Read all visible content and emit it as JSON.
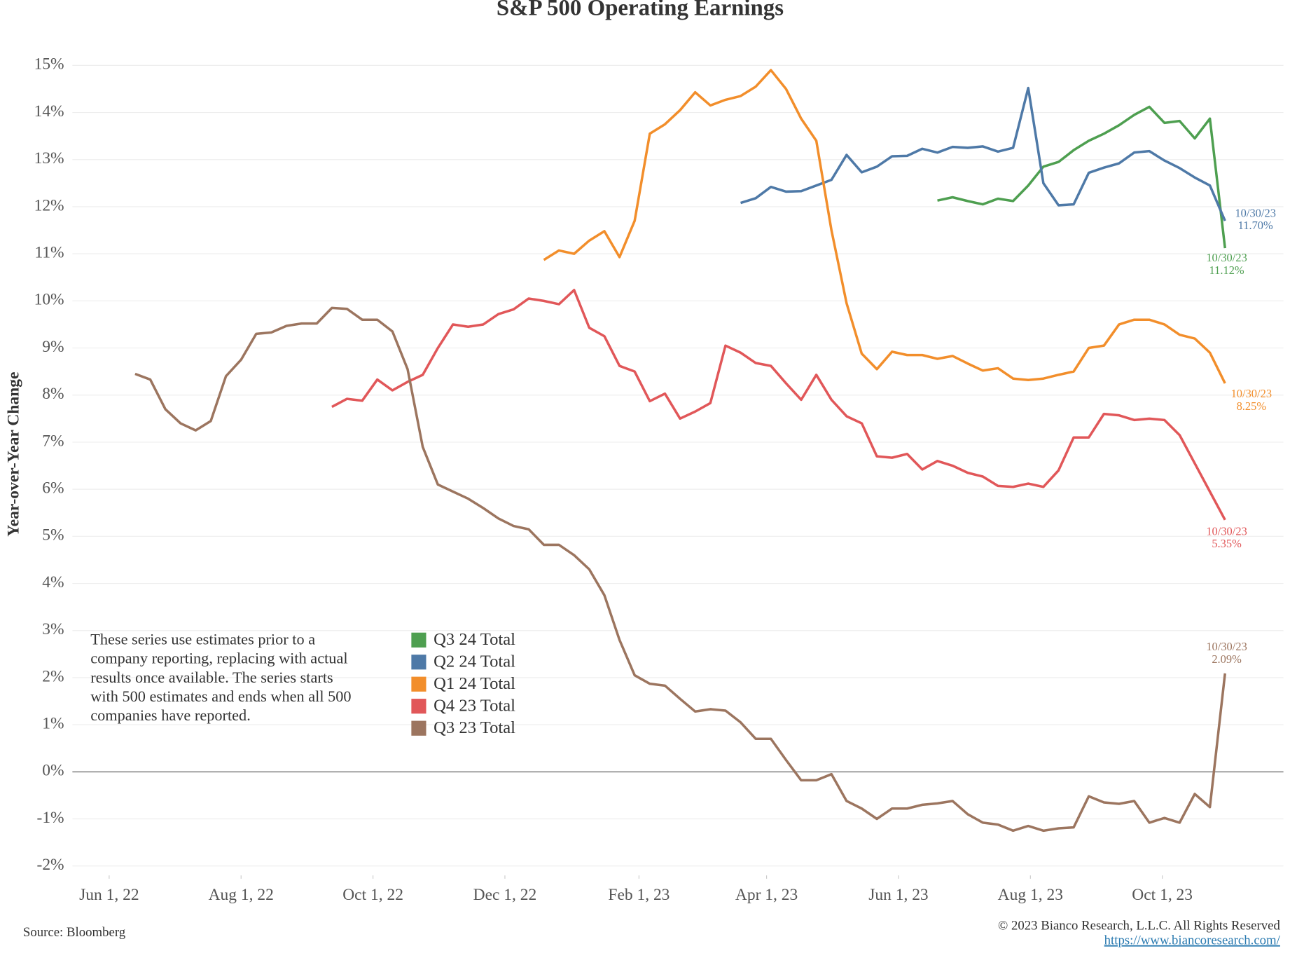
{
  "chart_data": {
    "type": "line",
    "title": "S&P 500 Operating Earnings",
    "y_label": "Year-over-Year Change",
    "source": "Source: Bloomberg",
    "copyright": "© 2023 Bianco Research, L.L.C. All Rights Reserved",
    "url": "https://www.biancoresearch.com/",
    "note": [
      "These series use estimates prior to a",
      "company reporting, replacing with actual",
      "results once available. The series starts",
      "with 500 estimates and ends when all 500",
      "companies have reported."
    ],
    "last_date_label": "10/30/23",
    "grid": true,
    "zero_line": true,
    "x": [
      "2022-06-13",
      "2022-06-20",
      "2022-06-27",
      "2022-07-04",
      "2022-07-11",
      "2022-07-18",
      "2022-07-25",
      "2022-08-01",
      "2022-08-08",
      "2022-08-15",
      "2022-08-22",
      "2022-08-29",
      "2022-09-05",
      "2022-09-12",
      "2022-09-19",
      "2022-09-26",
      "2022-10-03",
      "2022-10-10",
      "2022-10-17",
      "2022-10-24",
      "2022-10-31",
      "2022-11-07",
      "2022-11-14",
      "2022-11-21",
      "2022-11-28",
      "2022-12-05",
      "2022-12-12",
      "2022-12-19",
      "2022-12-26",
      "2023-01-02",
      "2023-01-09",
      "2023-01-16",
      "2023-01-23",
      "2023-01-30",
      "2023-02-06",
      "2023-02-13",
      "2023-02-20",
      "2023-02-27",
      "2023-03-06",
      "2023-03-13",
      "2023-03-20",
      "2023-03-27",
      "2023-04-03",
      "2023-04-10",
      "2023-04-17",
      "2023-04-24",
      "2023-05-01",
      "2023-05-08",
      "2023-05-15",
      "2023-05-22",
      "2023-05-29",
      "2023-06-05",
      "2023-06-12",
      "2023-06-19",
      "2023-06-26",
      "2023-07-03",
      "2023-07-10",
      "2023-07-17",
      "2023-07-24",
      "2023-07-31",
      "2023-08-07",
      "2023-08-14",
      "2023-08-21",
      "2023-08-28",
      "2023-09-04",
      "2023-09-11",
      "2023-09-18",
      "2023-09-25",
      "2023-10-02",
      "2023-10-09",
      "2023-10-16",
      "2023-10-23",
      "2023-10-30"
    ],
    "xlim": [
      "2022-05-15",
      "2023-11-26"
    ],
    "xticks": [
      {
        "value": "2022-06-01",
        "label": "Jun 1, 22"
      },
      {
        "value": "2022-08-01",
        "label": "Aug 1, 22"
      },
      {
        "value": "2022-10-01",
        "label": "Oct 1, 22"
      },
      {
        "value": "2022-12-01",
        "label": "Dec 1, 22"
      },
      {
        "value": "2023-02-01",
        "label": "Feb 1, 23"
      },
      {
        "value": "2023-04-01",
        "label": "Apr 1, 23"
      },
      {
        "value": "2023-06-01",
        "label": "Jun 1, 23"
      },
      {
        "value": "2023-08-01",
        "label": "Aug 1, 23"
      },
      {
        "value": "2023-10-01",
        "label": "Oct 1, 23"
      }
    ],
    "ylim": [
      -2.2,
      15.6
    ],
    "yticks": [
      {
        "value": -2,
        "label": "-2%"
      },
      {
        "value": -1,
        "label": "-1%"
      },
      {
        "value": 0,
        "label": "0%"
      },
      {
        "value": 1,
        "label": "1%"
      },
      {
        "value": 2,
        "label": "2%"
      },
      {
        "value": 3,
        "label": "3%"
      },
      {
        "value": 4,
        "label": "4%"
      },
      {
        "value": 5,
        "label": "5%"
      },
      {
        "value": 6,
        "label": "6%"
      },
      {
        "value": 7,
        "label": "7%"
      },
      {
        "value": 8,
        "label": "8%"
      },
      {
        "value": 9,
        "label": "9%"
      },
      {
        "value": 10,
        "label": "10%"
      },
      {
        "value": 11,
        "label": "11%"
      },
      {
        "value": 12,
        "label": "12%"
      },
      {
        "value": 13,
        "label": "13%"
      },
      {
        "value": 14,
        "label": "14%"
      },
      {
        "value": 15,
        "label": "15%"
      }
    ],
    "series": [
      {
        "name": "Q3 24 Total",
        "color": "#4e9f50",
        "values": [
          null,
          null,
          null,
          null,
          null,
          null,
          null,
          null,
          null,
          null,
          null,
          null,
          null,
          null,
          null,
          null,
          null,
          null,
          null,
          null,
          null,
          null,
          null,
          null,
          null,
          null,
          null,
          null,
          null,
          null,
          null,
          null,
          null,
          null,
          null,
          null,
          null,
          null,
          null,
          null,
          null,
          null,
          null,
          null,
          null,
          null,
          null,
          null,
          null,
          null,
          null,
          null,
          null,
          12.13,
          12.2,
          12.12,
          12.05,
          12.17,
          12.12,
          12.45,
          12.85,
          12.95,
          13.2,
          13.4,
          13.55,
          13.73,
          13.95,
          14.12,
          13.78,
          13.82,
          13.45,
          13.87,
          11.12
        ],
        "value_labels": [
          null,
          null,
          null,
          null,
          null,
          null,
          null,
          null,
          null,
          null,
          null,
          null,
          null,
          null,
          null,
          null,
          null,
          null,
          null,
          null,
          null,
          null,
          null,
          null,
          null,
          null,
          null,
          null,
          null,
          null,
          null,
          null,
          null,
          null,
          null,
          null,
          null,
          null,
          null,
          null,
          null,
          null,
          null,
          null,
          null,
          null,
          null,
          null,
          null,
          null,
          null,
          null,
          null,
          null,
          null,
          null,
          null,
          null,
          null,
          null,
          null,
          null,
          null,
          null,
          null,
          null,
          null,
          null,
          null,
          null,
          null,
          null,
          "11.12%"
        ]
      },
      {
        "name": "Q2 24 Total",
        "color": "#4e79a7",
        "values": [
          null,
          null,
          null,
          null,
          null,
          null,
          null,
          null,
          null,
          null,
          null,
          null,
          null,
          null,
          null,
          null,
          null,
          null,
          null,
          null,
          null,
          null,
          null,
          null,
          null,
          null,
          null,
          null,
          null,
          null,
          null,
          null,
          null,
          null,
          null,
          null,
          null,
          null,
          null,
          null,
          12.08,
          12.18,
          12.42,
          12.32,
          12.33,
          12.45,
          12.57,
          13.1,
          12.73,
          12.85,
          13.07,
          13.08,
          13.23,
          13.15,
          13.27,
          13.25,
          13.28,
          13.17,
          13.25,
          14.52,
          12.5,
          12.03,
          12.05,
          12.72,
          12.83,
          12.92,
          13.15,
          13.18,
          12.98,
          12.82,
          12.62,
          12.45,
          11.7
        ],
        "value_labels": [
          null,
          null,
          null,
          null,
          null,
          null,
          null,
          null,
          null,
          null,
          null,
          null,
          null,
          null,
          null,
          null,
          null,
          null,
          null,
          null,
          null,
          null,
          null,
          null,
          null,
          null,
          null,
          null,
          null,
          null,
          null,
          null,
          null,
          null,
          null,
          null,
          null,
          null,
          null,
          null,
          null,
          null,
          null,
          null,
          null,
          null,
          null,
          null,
          null,
          null,
          null,
          null,
          null,
          null,
          null,
          null,
          null,
          null,
          null,
          null,
          null,
          null,
          null,
          null,
          null,
          null,
          null,
          null,
          null,
          null,
          null,
          null,
          "11.70%"
        ]
      },
      {
        "name": "Q1 24 Total",
        "color": "#f28e2b",
        "values": [
          null,
          null,
          null,
          null,
          null,
          null,
          null,
          null,
          null,
          null,
          null,
          null,
          null,
          null,
          null,
          null,
          null,
          null,
          null,
          null,
          null,
          null,
          null,
          null,
          null,
          null,
          null,
          10.87,
          11.07,
          11.0,
          11.28,
          11.48,
          10.93,
          11.7,
          13.55,
          13.75,
          14.05,
          14.43,
          14.15,
          14.27,
          14.35,
          14.55,
          14.9,
          14.5,
          13.87,
          13.4,
          11.5,
          9.95,
          8.88,
          8.55,
          8.92,
          8.85,
          8.85,
          8.77,
          8.83,
          8.67,
          8.52,
          8.57,
          8.35,
          8.32,
          8.35,
          8.43,
          8.5,
          9.0,
          9.05,
          9.5,
          9.6,
          9.6,
          9.5,
          9.28,
          9.2,
          8.9,
          8.25
        ],
        "value_labels": [
          null,
          null,
          null,
          null,
          null,
          null,
          null,
          null,
          null,
          null,
          null,
          null,
          null,
          null,
          null,
          null,
          null,
          null,
          null,
          null,
          null,
          null,
          null,
          null,
          null,
          null,
          null,
          null,
          null,
          null,
          null,
          null,
          null,
          null,
          null,
          null,
          null,
          null,
          null,
          null,
          null,
          null,
          null,
          null,
          null,
          null,
          null,
          null,
          null,
          null,
          null,
          null,
          null,
          null,
          null,
          null,
          null,
          null,
          null,
          null,
          null,
          null,
          null,
          null,
          null,
          null,
          null,
          null,
          null,
          null,
          null,
          null,
          "8.25%"
        ]
      },
      {
        "name": "Q4 23 Total",
        "color": "#e15759",
        "values": [
          null,
          null,
          null,
          null,
          null,
          null,
          null,
          null,
          null,
          null,
          null,
          null,
          null,
          7.75,
          7.92,
          7.88,
          8.33,
          8.1,
          8.28,
          8.43,
          9.0,
          9.5,
          9.45,
          9.5,
          9.72,
          9.82,
          10.05,
          10.0,
          9.93,
          10.23,
          9.43,
          9.25,
          8.62,
          8.5,
          7.87,
          8.03,
          7.5,
          7.65,
          7.83,
          9.05,
          8.9,
          8.68,
          8.62,
          8.25,
          7.9,
          8.43,
          7.9,
          7.55,
          7.4,
          6.7,
          6.67,
          6.75,
          6.42,
          6.6,
          6.5,
          6.35,
          6.27,
          6.07,
          6.05,
          6.12,
          6.05,
          6.4,
          7.1,
          7.1,
          7.6,
          7.57,
          7.47,
          7.5,
          7.47,
          7.15,
          6.55,
          5.95,
          5.35
        ],
        "value_labels": [
          null,
          null,
          null,
          null,
          null,
          null,
          null,
          null,
          null,
          null,
          null,
          null,
          null,
          null,
          null,
          null,
          null,
          null,
          null,
          null,
          null,
          null,
          null,
          null,
          null,
          null,
          null,
          null,
          null,
          null,
          null,
          null,
          null,
          null,
          null,
          null,
          null,
          null,
          null,
          null,
          null,
          null,
          null,
          null,
          null,
          null,
          null,
          null,
          null,
          null,
          null,
          null,
          null,
          null,
          null,
          null,
          null,
          null,
          null,
          null,
          null,
          null,
          null,
          null,
          null,
          null,
          null,
          null,
          null,
          null,
          null,
          null,
          "5.35%"
        ]
      },
      {
        "name": "Q3 23 Total",
        "color": "#9c755f",
        "values": [
          8.45,
          8.33,
          7.7,
          7.4,
          7.25,
          7.45,
          8.4,
          8.75,
          9.3,
          9.33,
          9.47,
          9.52,
          9.52,
          9.85,
          9.83,
          9.6,
          9.6,
          9.35,
          8.55,
          6.9,
          6.1,
          5.95,
          5.8,
          5.6,
          5.38,
          5.22,
          5.15,
          4.82,
          4.82,
          4.6,
          4.3,
          3.75,
          2.8,
          2.05,
          1.87,
          1.83,
          1.55,
          1.28,
          1.33,
          1.3,
          1.05,
          0.7,
          0.7,
          0.25,
          -0.18,
          -0.18,
          -0.05,
          -0.62,
          -0.78,
          -1.0,
          -0.78,
          -0.78,
          -0.7,
          -0.67,
          -0.62,
          -0.9,
          -1.08,
          -1.12,
          -1.25,
          -1.15,
          -1.25,
          -1.2,
          -1.18,
          -0.52,
          -0.65,
          -0.68,
          -0.62,
          -1.08,
          -0.98,
          -1.08,
          -0.47,
          -0.75,
          2.09
        ],
        "value_labels": [
          null,
          null,
          null,
          null,
          null,
          null,
          null,
          null,
          null,
          null,
          null,
          null,
          null,
          null,
          null,
          null,
          null,
          null,
          null,
          null,
          null,
          null,
          null,
          null,
          null,
          null,
          null,
          null,
          null,
          null,
          null,
          null,
          null,
          null,
          null,
          null,
          null,
          null,
          null,
          null,
          null,
          null,
          null,
          null,
          null,
          null,
          null,
          null,
          null,
          null,
          null,
          null,
          null,
          null,
          null,
          null,
          null,
          null,
          null,
          null,
          null,
          null,
          null,
          null,
          null,
          null,
          null,
          null,
          null,
          null,
          null,
          null,
          "2.09%"
        ]
      }
    ]
  }
}
